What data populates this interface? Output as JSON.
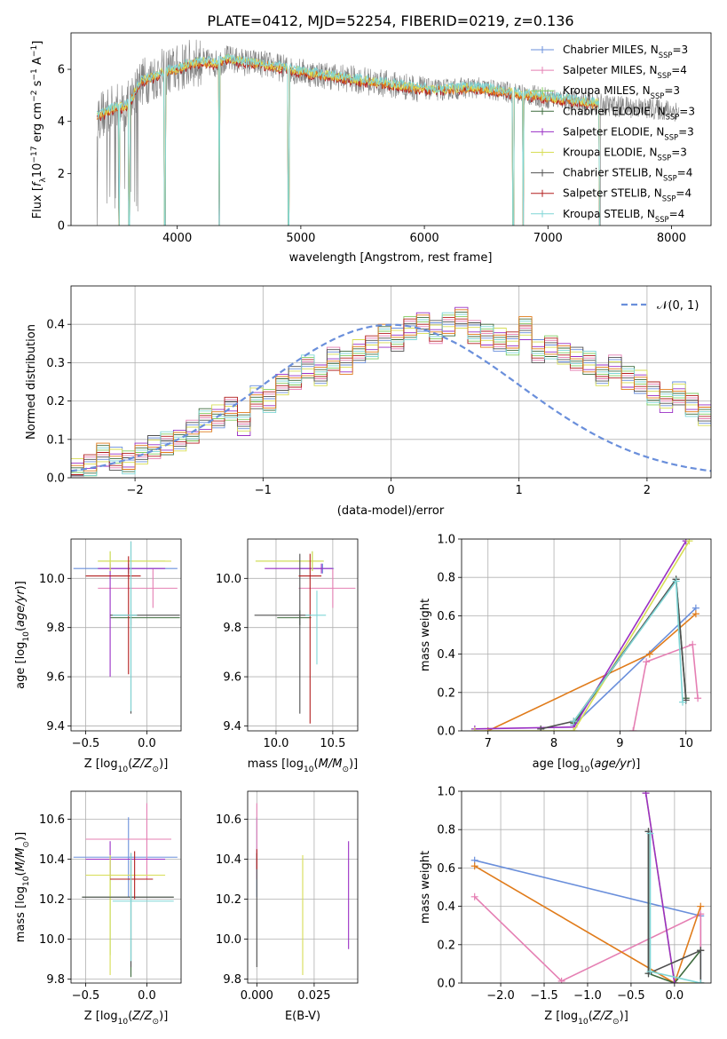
{
  "figure_title": "PLATE=0412, MJD=52254, FIBERID=0219, z=0.136",
  "colors": {
    "Chabrier MILES": "#6a8fdb",
    "Salpeter MILES": "#e57fb3",
    "Kroupa MILES": "#80cc60",
    "Chabrier ELODIE": "#3d6b3d",
    "Salpeter ELODIE": "#9a2fc4",
    "Kroupa ELODIE": "#d7dd55",
    "Chabrier STELIB": "#505050",
    "Salpeter STELIB": "#b21f1f",
    "Kroupa STELIB": "#7fd6d6",
    "data": "#808080",
    "orange": "#e07b1a"
  },
  "chart_data": [
    {
      "id": "spectrum",
      "type": "line",
      "title": "PLATE=0412, MJD=52254, FIBERID=0219, z=0.136",
      "xlabel": "wavelength [Angstrom, rest frame]",
      "ylabel": "Flux [f_λ 10^-17 erg cm^-2 s^-1 A^-1]",
      "xlim": [
        3140,
        8320
      ],
      "ylim": [
        0,
        7.4
      ],
      "xticks": [
        "4000",
        "5000",
        "6000",
        "7000",
        "8000"
      ],
      "yticks": [
        "0",
        "2",
        "4",
        "6"
      ],
      "legend_position": "top-right",
      "legend": [
        {
          "label": "Chabrier MILES",
          "n": "3",
          "color": "#6a8fdb"
        },
        {
          "label": "Salpeter MILES",
          "n": "4",
          "color": "#e57fb3"
        },
        {
          "label": "Kroupa MILES",
          "n": "3",
          "color": "#80cc60"
        },
        {
          "label": "Chabrier ELODIE",
          "n": "3",
          "color": "#3d6b3d"
        },
        {
          "label": "Salpeter ELODIE",
          "n": "3",
          "color": "#9a2fc4"
        },
        {
          "label": "Kroupa ELODIE",
          "n": "3",
          "color": "#d7dd55"
        },
        {
          "label": "Chabrier STELIB",
          "n": "4",
          "color": "#505050"
        },
        {
          "label": "Salpeter STELIB",
          "n": "4",
          "color": "#b21f1f"
        },
        {
          "label": "Kroupa STELIB",
          "n": "4",
          "color": "#7fd6d6"
        }
      ],
      "continuum": {
        "x": [
          3350,
          3500,
          3600,
          3700,
          3800,
          3900,
          4000,
          4100,
          4200,
          4300,
          4400,
          4500,
          4700,
          5000,
          5300,
          5600,
          5900,
          6100,
          6400,
          6700,
          7000,
          7200,
          7500,
          7800,
          8050
        ],
        "y": [
          4.2,
          4.5,
          4.6,
          5.5,
          5.7,
          5.9,
          6.0,
          6.2,
          6.3,
          6.2,
          6.4,
          6.3,
          6.2,
          5.9,
          5.7,
          5.5,
          5.3,
          5.2,
          5.3,
          5.1,
          4.9,
          4.8,
          4.6,
          4.5,
          4.4
        ]
      },
      "observed_xrange": [
        3350,
        8060
      ],
      "model_xrange": [
        3350,
        7420
      ],
      "observed_noise": 0.6,
      "absorption_lines": [
        {
          "x": 3530,
          "y": 0
        },
        {
          "x": 3610,
          "y": 0
        },
        {
          "x": 3900,
          "y": 0
        },
        {
          "x": 4340,
          "y": 0
        },
        {
          "x": 4900,
          "y": 0
        },
        {
          "x": 6720,
          "y": 0.2
        },
        {
          "x": 6800,
          "y": 0
        },
        {
          "x": 7420,
          "y": 0
        }
      ]
    },
    {
      "id": "residual-histogram",
      "type": "histogram",
      "xlabel": "(data-model)/error",
      "ylabel": "Normed distribution",
      "xlim": [
        -2.5,
        2.5
      ],
      "ylim": [
        0,
        0.5
      ],
      "xticks": [
        "−2",
        "−1",
        "0",
        "1",
        "2"
      ],
      "yticks": [
        "0.0",
        "0.1",
        "0.2",
        "0.3",
        "0.4"
      ],
      "bin_width": 0.1,
      "gaussian_label": "𝒩(0, 1)",
      "gaussian_mean": 0,
      "gaussian_sigma": 1,
      "gaussian_color": "#6a8fdb",
      "legend_position": "top-right",
      "histogram_values": [
        0.02,
        0.03,
        0.06,
        0.05,
        0.04,
        0.06,
        0.08,
        0.09,
        0.1,
        0.12,
        0.15,
        0.16,
        0.18,
        0.14,
        0.21,
        0.2,
        0.24,
        0.26,
        0.29,
        0.27,
        0.31,
        0.3,
        0.33,
        0.34,
        0.37,
        0.36,
        0.39,
        0.4,
        0.38,
        0.4,
        0.42,
        0.38,
        0.37,
        0.36,
        0.35,
        0.39,
        0.33,
        0.34,
        0.32,
        0.31,
        0.3,
        0.27,
        0.29,
        0.26,
        0.25,
        0.22,
        0.2,
        0.22,
        0.19,
        0.16
      ]
    },
    {
      "id": "age-vs-z",
      "type": "errorbar",
      "xlabel": "Z [log10(Z/Z⊙)]",
      "ylabel": "age [log10(age/yr)]",
      "xlim": [
        -0.62,
        0.28
      ],
      "ylim": [
        9.38,
        10.16
      ],
      "xticks": [
        "−0.5",
        "0.0"
      ],
      "yticks": [
        "9.4",
        "9.6",
        "9.8",
        "10.0"
      ],
      "points": [
        {
          "model": "Chabrier MILES",
          "x": -0.15,
          "xerr": [
            0.45,
            0.4
          ],
          "y": 10.04,
          "yerr": [
            0.02,
            0.02
          ]
        },
        {
          "model": "Salpeter MILES",
          "x": 0.05,
          "xerr": [
            0.45,
            0.2
          ],
          "y": 9.96,
          "yerr": [
            0.08,
            0.08
          ]
        },
        {
          "model": "Kroupa MILES",
          "x": -0.3,
          "xerr": [
            0.1,
            0.45
          ],
          "y": 10.07,
          "yerr": [
            0.04,
            0.04
          ]
        },
        {
          "model": "Chabrier ELODIE",
          "x": -0.13,
          "xerr": [
            0.17,
            0.4
          ],
          "y": 9.84,
          "yerr": [
            0.03,
            0.03
          ]
        },
        {
          "model": "Salpeter ELODIE",
          "x": -0.3,
          "xerr": [
            0.1,
            0.45
          ],
          "y": 10.04,
          "yerr": [
            0.44,
            0.02
          ]
        },
        {
          "model": "Kroupa ELODIE",
          "x": -0.3,
          "xerr": [
            0.1,
            0.5
          ],
          "y": 10.07,
          "yerr": [
            0.04,
            0.04
          ]
        },
        {
          "model": "Chabrier STELIB",
          "x": -0.13,
          "xerr": [
            0.17,
            0.4
          ],
          "y": 9.85,
          "yerr": [
            0.4,
            0.3
          ]
        },
        {
          "model": "Salpeter STELIB",
          "x": -0.15,
          "xerr": [
            0.35,
            0.1
          ],
          "y": 10.01,
          "yerr": [
            0.4,
            0.08
          ]
        },
        {
          "model": "Kroupa STELIB",
          "x": -0.13,
          "xerr": [
            0.15,
            0.05
          ],
          "y": 9.85,
          "yerr": [
            0.39,
            0.3
          ]
        }
      ]
    },
    {
      "id": "age-vs-mass",
      "type": "errorbar",
      "xlabel": "mass [log10(M/M⊙)]",
      "ylabel": "",
      "xlim": [
        9.75,
        10.72
      ],
      "ylim": [
        9.38,
        10.16
      ],
      "xticks": [
        "10.0",
        "10.5"
      ],
      "yticks": [
        "9.4",
        "9.6",
        "9.8",
        "10.0"
      ],
      "points": [
        {
          "model": "Chabrier MILES",
          "x": 10.41,
          "xerr": [
            0.2,
            0.1
          ],
          "y": 10.04,
          "yerr": [
            0.02,
            0.02
          ]
        },
        {
          "model": "Salpeter MILES",
          "x": 10.5,
          "xerr": [
            0.3,
            0.2
          ],
          "y": 9.96,
          "yerr": [
            0.08,
            0.08
          ]
        },
        {
          "model": "Kroupa MILES",
          "x": 10.32,
          "xerr": [
            0.5,
            0.1
          ],
          "y": 10.07,
          "yerr": [
            0.04,
            0.04
          ]
        },
        {
          "model": "Chabrier ELODIE",
          "x": 10.21,
          "xerr": [
            0.2,
            0.1
          ],
          "y": 9.84,
          "yerr": [
            0.03,
            0.03
          ]
        },
        {
          "model": "Salpeter ELODIE",
          "x": 10.4,
          "xerr": [
            0.5,
            0.1
          ],
          "y": 10.04,
          "yerr": [
            0.02,
            0.02
          ]
        },
        {
          "model": "Kroupa ELODIE",
          "x": 10.32,
          "xerr": [
            0.5,
            0.1
          ],
          "y": 10.07,
          "yerr": [
            0.04,
            0.04
          ]
        },
        {
          "model": "Chabrier STELIB",
          "x": 10.21,
          "xerr": [
            0.4,
            0.1
          ],
          "y": 9.85,
          "yerr": [
            0.4,
            0.25
          ]
        },
        {
          "model": "Salpeter STELIB",
          "x": 10.3,
          "xerr": [
            0.1,
            0.1
          ],
          "y": 10.01,
          "yerr": [
            0.6,
            0.09
          ]
        },
        {
          "model": "Kroupa STELIB",
          "x": 10.36,
          "xerr": [
            0.1,
            0.08
          ],
          "y": 9.85,
          "yerr": [
            0.2,
            0.1
          ]
        }
      ]
    },
    {
      "id": "weight-vs-age",
      "type": "line",
      "xlabel": "age [log10(age/yr)]",
      "ylabel": "mass weight",
      "xlim": [
        6.6,
        10.38
      ],
      "ylim": [
        0,
        1.0
      ],
      "xticks": [
        "7",
        "8",
        "9",
        "10"
      ],
      "yticks": [
        "0.0",
        "0.2",
        "0.4",
        "0.6",
        "0.8",
        "1.0"
      ],
      "series": [
        {
          "model": "Chabrier MILES",
          "x": [
            8.3,
            10.15
          ],
          "y": [
            0.03,
            0.64
          ]
        },
        {
          "model": "Salpeter MILES",
          "x": [
            9.2,
            9.4,
            10.1,
            10.18
          ],
          "y": [
            0.0,
            0.36,
            0.45,
            0.17
          ]
        },
        {
          "model": "orange",
          "x": [
            7.0,
            9.45,
            10.15
          ],
          "y": [
            0.0,
            0.4,
            0.61
          ]
        },
        {
          "model": "Chabrier ELODIE",
          "x": [
            8.3,
            9.85,
            10.0
          ],
          "y": [
            0.04,
            0.79,
            0.17
          ]
        },
        {
          "model": "Salpeter ELODIE",
          "x": [
            6.8,
            8.3,
            10.0
          ],
          "y": [
            0.01,
            0.02,
            0.99
          ]
        },
        {
          "model": "Kroupa ELODIE",
          "x": [
            6.8,
            8.3,
            10.05
          ],
          "y": [
            0.0,
            0.0,
            0.99
          ]
        },
        {
          "model": "Chabrier STELIB",
          "x": [
            7.8,
            8.3,
            9.85,
            10.0
          ],
          "y": [
            0.01,
            0.05,
            0.79,
            0.16
          ]
        },
        {
          "model": "Kroupa STELIB",
          "x": [
            8.3,
            9.85,
            9.95
          ],
          "y": [
            0.05,
            0.78,
            0.15
          ]
        }
      ]
    },
    {
      "id": "mass-vs-z",
      "type": "errorbar",
      "xlabel": "Z [log10(Z/Z⊙)]",
      "ylabel": "mass [log10(M/M⊙)]",
      "xlim": [
        -0.62,
        0.28
      ],
      "ylim": [
        9.78,
        10.74
      ],
      "xticks": [
        "−0.5",
        "0.0"
      ],
      "yticks": [
        "9.8",
        "10.0",
        "10.2",
        "10.4",
        "10.6"
      ],
      "points": [
        {
          "model": "Chabrier MILES",
          "x": -0.15,
          "xerr": [
            0.45,
            0.4
          ],
          "y": 10.41,
          "yerr": [
            0.2,
            0.2
          ]
        },
        {
          "model": "Salpeter MILES",
          "x": 0.0,
          "xerr": [
            0.5,
            0.2
          ],
          "y": 10.5,
          "yerr": [
            0.2,
            0.18
          ]
        },
        {
          "model": "Kroupa MILES",
          "x": -0.3,
          "xerr": [
            0.2,
            0.4
          ],
          "y": 10.32,
          "yerr": [
            0.4,
            0.1
          ]
        },
        {
          "model": "Chabrier ELODIE",
          "x": -0.13,
          "xerr": [
            0.4,
            0.35
          ],
          "y": 10.21,
          "yerr": [
            0.4,
            0.22
          ]
        },
        {
          "model": "Salpeter ELODIE",
          "x": -0.3,
          "xerr": [
            0.2,
            0.45
          ],
          "y": 10.4,
          "yerr": [
            0.1,
            0.09
          ]
        },
        {
          "model": "Kroupa ELODIE",
          "x": -0.3,
          "xerr": [
            0.2,
            0.45
          ],
          "y": 10.32,
          "yerr": [
            0.5,
            0.1
          ]
        },
        {
          "model": "Chabrier STELIB",
          "x": -0.13,
          "xerr": [
            0.4,
            0.35
          ],
          "y": 10.21,
          "yerr": [
            0.35,
            0.22
          ]
        },
        {
          "model": "Salpeter STELIB",
          "x": -0.1,
          "xerr": [
            0.2,
            0.15
          ],
          "y": 10.3,
          "yerr": [
            0.1,
            0.14
          ]
        },
        {
          "model": "Kroupa STELIB",
          "x": -0.13,
          "xerr": [
            0.15,
            0.35
          ],
          "y": 10.19,
          "yerr": [
            0.3,
            0.24
          ]
        }
      ]
    },
    {
      "id": "mass-vs-ebv",
      "type": "errorbar",
      "xlabel": "E(B-V)",
      "ylabel": "",
      "xlim": [
        -0.004,
        0.044
      ],
      "ylim": [
        9.78,
        10.74
      ],
      "xticks": [
        "0.000",
        "0.025"
      ],
      "yticks": [
        "9.8",
        "10.0",
        "10.2",
        "10.4",
        "10.6"
      ],
      "points": [
        {
          "model": "Chabrier MILES",
          "x": 0.0,
          "xerr": [
            0,
            0
          ],
          "y": 10.41,
          "yerr": [
            0.2,
            0.2
          ]
        },
        {
          "model": "Salpeter MILES",
          "x": 0.0,
          "xerr": [
            0,
            0
          ],
          "y": 10.5,
          "yerr": [
            0.2,
            0.18
          ]
        },
        {
          "model": "Kroupa ELODIE",
          "x": 0.02,
          "xerr": [
            0,
            0
          ],
          "y": 10.32,
          "yerr": [
            0.5,
            0.1
          ]
        },
        {
          "model": "Salpeter ELODIE",
          "x": 0.04,
          "xerr": [
            0,
            0
          ],
          "y": 10.22,
          "yerr": [
            0.27,
            0.27
          ]
        },
        {
          "model": "Chabrier STELIB",
          "x": 0.0,
          "xerr": [
            0,
            0
          ],
          "y": 10.21,
          "yerr": [
            0.35,
            0.22
          ]
        },
        {
          "model": "Salpeter STELIB",
          "x": 0.0,
          "xerr": [
            0,
            0
          ],
          "y": 10.4,
          "yerr": [
            0.05,
            0.05
          ]
        }
      ]
    },
    {
      "id": "weight-vs-z",
      "type": "line",
      "xlabel": "Z [log10(Z/Z⊙)]",
      "ylabel": "mass weight",
      "xlim": [
        -2.45,
        0.42
      ],
      "ylim": [
        0,
        1.0
      ],
      "xticks": [
        "−2.0",
        "−1.5",
        "−1.0",
        "−0.5",
        "0.0"
      ],
      "yticks": [
        "0.0",
        "0.2",
        "0.4",
        "0.6",
        "0.8",
        "1.0"
      ],
      "series": [
        {
          "model": "Chabrier MILES",
          "x": [
            -2.3,
            0.3,
            0.3
          ],
          "y": [
            0.64,
            0.35,
            0.0
          ]
        },
        {
          "model": "Salpeter MILES",
          "x": [
            -2.3,
            -1.3,
            0.3,
            0.3
          ],
          "y": [
            0.45,
            0.01,
            0.36,
            0.17
          ]
        },
        {
          "model": "orange",
          "x": [
            -2.3,
            0.0,
            0.3
          ],
          "y": [
            0.61,
            0.0,
            0.4
          ]
        },
        {
          "model": "Chabrier ELODIE",
          "x": [
            -0.3,
            -0.3,
            0.0,
            0.3
          ],
          "y": [
            0.79,
            0.05,
            0.0,
            0.17
          ]
        },
        {
          "model": "Kroupa ELODIE",
          "x": [
            -0.33,
            0.0,
            0.3
          ],
          "y": [
            0.99,
            0.0,
            0.0
          ]
        },
        {
          "model": "Salpeter ELODIE",
          "x": [
            -0.33,
            0.0
          ],
          "y": [
            0.99,
            0.0
          ]
        },
        {
          "model": "Chabrier STELIB",
          "x": [
            -0.3,
            -0.3,
            0.3,
            0.3
          ],
          "y": [
            0.79,
            0.05,
            0.17,
            0.0
          ]
        },
        {
          "model": "Kroupa STELIB",
          "x": [
            -0.28,
            -0.28,
            0.3
          ],
          "y": [
            0.78,
            0.06,
            0.0
          ]
        }
      ]
    }
  ]
}
